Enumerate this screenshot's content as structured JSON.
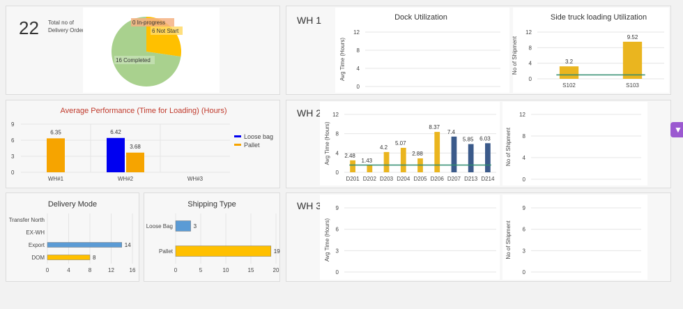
{
  "kpi": {
    "value": "22",
    "label": "Total no of Delivery Order"
  },
  "warehouses": {
    "wh1": "WH 1",
    "wh2": "WH 2",
    "wh3": "WH 3"
  },
  "colors": {
    "gold": "#eab51f",
    "navy": "#3b5a8a",
    "orange": "#f6a400",
    "blue": "#0000f0",
    "steel": "#5b9bd5",
    "yellow": "#ffc000",
    "green": "#a9d18e",
    "trend": "#2e8b6e",
    "perf_title": "#c0392b",
    "accent": "#9b59d0"
  },
  "chart_data": [
    {
      "id": "delivery-status",
      "type": "pie",
      "categories": [
        "Completed",
        "Not Start",
        "In-progress"
      ],
      "values": [
        16,
        6,
        0
      ],
      "labels": [
        "16 Completed",
        "6 Not Start",
        "0 In-progress"
      ],
      "colors": [
        "#a9d18e",
        "#ffc000",
        "#f4b183"
      ]
    },
    {
      "id": "wh1-dock",
      "type": "bar",
      "title": "Dock Utilization",
      "ylabel": "Avg Time (Hours)",
      "categories": [],
      "values": [],
      "yticks": [
        0,
        4,
        8,
        12
      ],
      "ylim": [
        0,
        12
      ]
    },
    {
      "id": "wh1-side",
      "type": "bar",
      "title": "Side truck loading Utilization",
      "ylabel": "No of Shipment",
      "categories": [
        "S102",
        "S103"
      ],
      "values": [
        3.2,
        9.52
      ],
      "labels": [
        "3.2",
        "9.52"
      ],
      "yticks": [
        0,
        4,
        8,
        12
      ],
      "ylim": [
        0,
        12
      ],
      "reference_line": 1
    },
    {
      "id": "avg-performance",
      "type": "bar",
      "title": "Average Performance (Time for Loading) (Hours)",
      "categories": [
        "WH#1",
        "WH#2",
        "WH#3"
      ],
      "series": [
        {
          "name": "Loose bag",
          "values": [
            null,
            6.42,
            null
          ]
        },
        {
          "name": "Pallet",
          "values": [
            6.35,
            3.68,
            null
          ]
        }
      ],
      "labels": [
        "6.35",
        "6.42",
        "3.68"
      ],
      "yticks": [
        0,
        3,
        6,
        9
      ],
      "ylim": [
        0,
        9
      ],
      "legend": "right"
    },
    {
      "id": "wh2-dock",
      "type": "bar",
      "ylabel": "Avg Time (Hours)",
      "categories": [
        "D201",
        "D202",
        "D203",
        "D204",
        "D205",
        "D206",
        "D207",
        "D213",
        "D214"
      ],
      "values": [
        2.48,
        1.43,
        4.2,
        5.07,
        2.88,
        8.37,
        7.4,
        5.85,
        6.03
      ],
      "labels": [
        "2.48",
        "1.43",
        "4.2",
        "5.07",
        "2.88",
        "8.37",
        "7.4",
        "5.85",
        "6.03"
      ],
      "yticks": [
        0,
        4,
        8,
        12
      ],
      "ylim": [
        0,
        12
      ],
      "reference_line": 1.5
    },
    {
      "id": "wh2-side",
      "type": "bar",
      "ylabel": "No of Shipment",
      "categories": [],
      "values": [],
      "yticks": [
        0,
        4,
        8,
        12
      ],
      "ylim": [
        0,
        12
      ]
    },
    {
      "id": "delivery-mode",
      "type": "bar",
      "orientation": "horizontal",
      "title": "Delivery Mode",
      "categories": [
        "Transfer North",
        "EX-WH",
        "Export",
        "DOM"
      ],
      "values": [
        null,
        null,
        14,
        8
      ],
      "labels": [
        "",
        "",
        "14",
        "8"
      ],
      "xticks": [
        0,
        4,
        8,
        12,
        16
      ],
      "xlim": [
        0,
        16
      ]
    },
    {
      "id": "shipping-type",
      "type": "bar",
      "orientation": "horizontal",
      "title": "Shipping Type",
      "categories": [
        "Loose Bag",
        "Pallet"
      ],
      "values": [
        3,
        19
      ],
      "labels": [
        "3",
        "19"
      ],
      "xticks": [
        0,
        5,
        10,
        15,
        20
      ],
      "xlim": [
        0,
        20
      ]
    },
    {
      "id": "wh3-dock",
      "type": "bar",
      "ylabel": "Avg Time (Hours)",
      "categories": [],
      "values": [],
      "yticks": [
        0,
        3,
        6,
        9
      ],
      "ylim": [
        0,
        9
      ]
    },
    {
      "id": "wh3-side",
      "type": "bar",
      "ylabel": "No of Shipment",
      "categories": [],
      "values": [],
      "yticks": [
        0,
        3,
        6,
        9
      ],
      "ylim": [
        0,
        9
      ]
    }
  ]
}
